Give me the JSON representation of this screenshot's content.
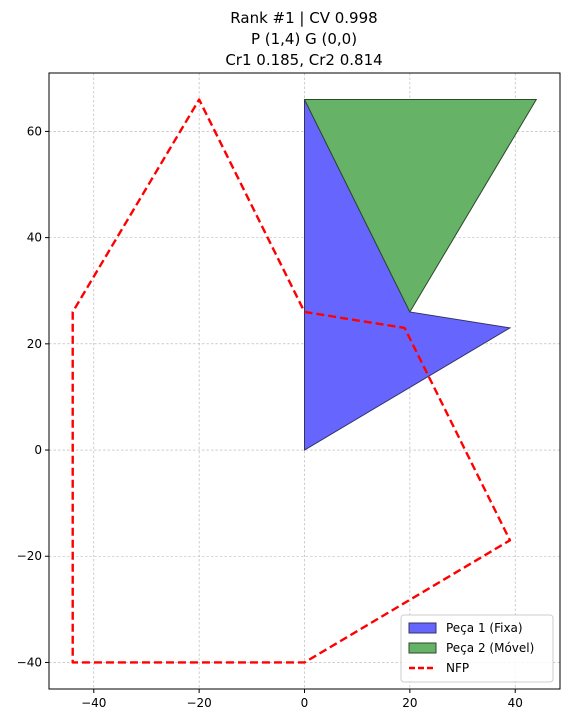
{
  "chart_data": {
    "type": "polygon-plot",
    "title_lines": [
      "Rank #1 | CV 0.998",
      "P (1,4) G (0,0)",
      "Cr1 0.185, Cr2 0.814"
    ],
    "xlim": [
      -48.5,
      48.5
    ],
    "ylim": [
      -45,
      71
    ],
    "xticks": [
      -40,
      -20,
      0,
      20,
      40
    ],
    "yticks": [
      -40,
      -20,
      0,
      20,
      40,
      60
    ],
    "grid": true,
    "legend_position": "lower-right",
    "series": [
      {
        "name": "Peça 1 (Fixa)",
        "kind": "filled-polygon",
        "fill": "#6666ff",
        "edge": "#333366",
        "points": [
          [
            0,
            0
          ],
          [
            39,
            23
          ],
          [
            20,
            26
          ],
          [
            0,
            66
          ]
        ]
      },
      {
        "name": "Peça 2 (Móvel)",
        "kind": "filled-polygon",
        "fill": "#66b266",
        "edge": "#2a4a2a",
        "points": [
          [
            0,
            66
          ],
          [
            44,
            66
          ],
          [
            20,
            26
          ]
        ]
      },
      {
        "name": "NFP",
        "kind": "dashed-line",
        "color": "#ff0000",
        "points": [
          [
            0,
            26
          ],
          [
            19,
            23
          ],
          [
            39,
            -17
          ],
          [
            0,
            -40
          ],
          [
            -44,
            -40
          ],
          [
            -44,
            26
          ],
          [
            -20,
            66
          ],
          [
            0,
            26
          ]
        ]
      }
    ]
  }
}
